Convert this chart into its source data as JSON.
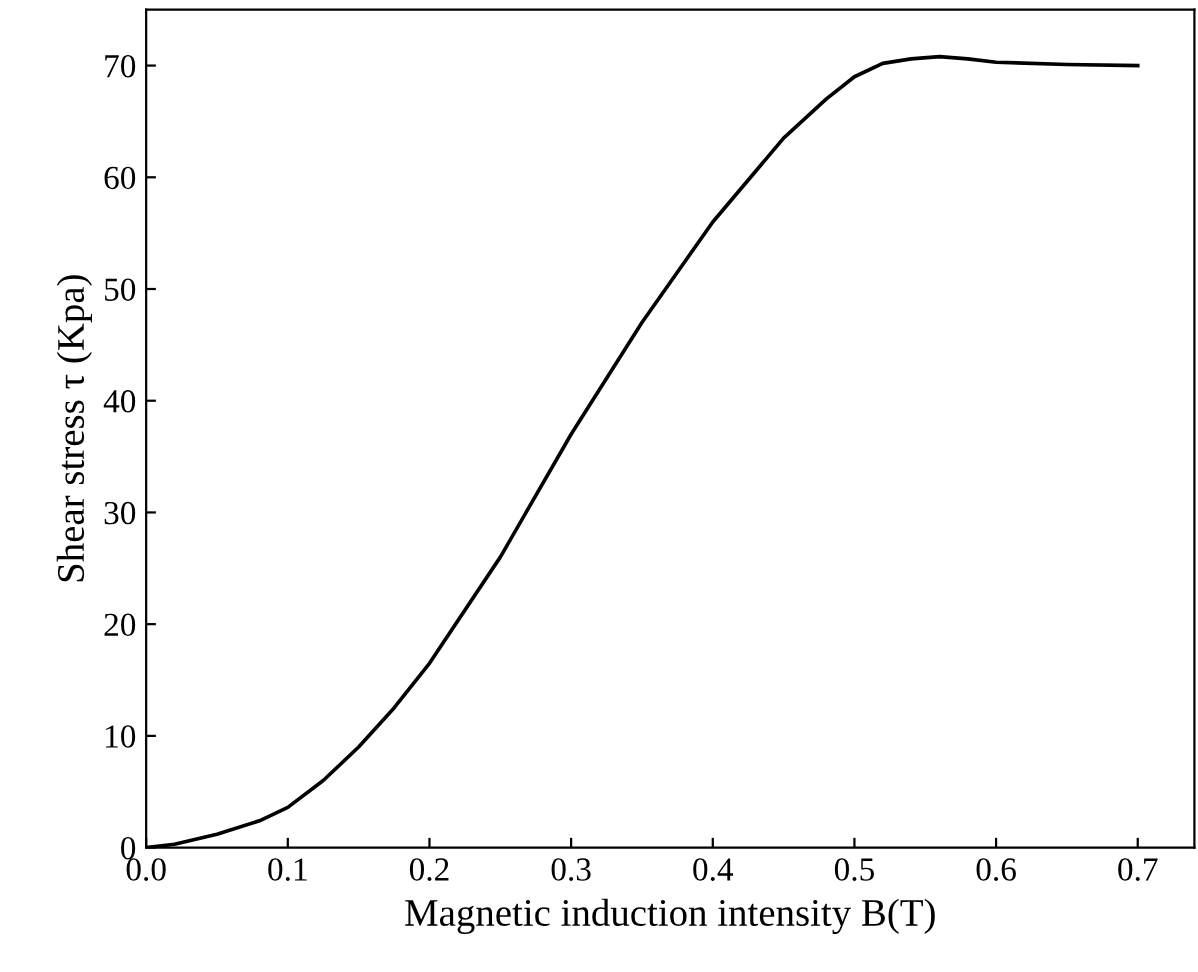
{
  "chart_data": {
    "type": "line",
    "xlabel": "Magnetic induction intensity B(T)",
    "ylabel": "Shear stress τ (Kpa)",
    "x": [
      0,
      0.02,
      0.05,
      0.08,
      0.1,
      0.125,
      0.15,
      0.175,
      0.2,
      0.25,
      0.3,
      0.35,
      0.4,
      0.45,
      0.48,
      0.5,
      0.52,
      0.54,
      0.56,
      0.58,
      0.6,
      0.65,
      0.7
    ],
    "series": [
      {
        "color": "#000000",
        "values": [
          0,
          0.3,
          1.2,
          2.4,
          3.6,
          6,
          9,
          12.5,
          16.5,
          26,
          37,
          47,
          56,
          63.5,
          67,
          69,
          70.2,
          70.6,
          70.8,
          70.6,
          70.3,
          70.1,
          70
        ]
      }
    ],
    "xlim": [
      0,
      0.74
    ],
    "ylim": [
      0,
      75
    ],
    "xticks": [
      {
        "value": 0,
        "label": "0.0"
      },
      0.1,
      0.2,
      0.3,
      0.4,
      0.5,
      0.6,
      0.7
    ],
    "yticks": [
      0,
      10,
      20,
      30,
      40,
      50,
      60,
      70
    ],
    "grid": false,
    "legend": false,
    "marker": "none",
    "line_style": "solid"
  }
}
